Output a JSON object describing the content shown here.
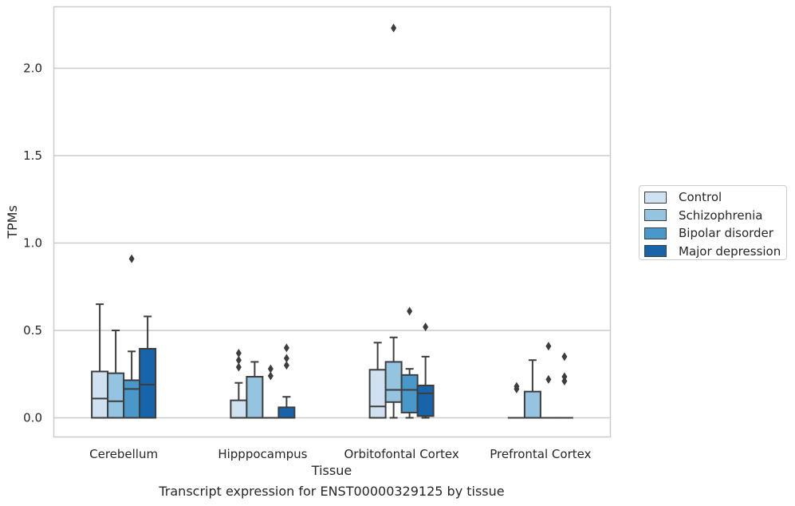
{
  "chart_data": {
    "type": "box",
    "xlabel": "Tissue",
    "ylabel": "TPMs",
    "caption": "Transcript expression for ENST00000329125 by tissue",
    "ylim": [
      -0.11,
      2.35
    ],
    "yticks": [
      0.0,
      0.5,
      1.0,
      1.5,
      2.0
    ],
    "ytick_labels": [
      "0.0",
      "0.5",
      "1.0",
      "1.5",
      "2.0"
    ],
    "grid": "horizontal",
    "legend_position": "right",
    "categories": [
      "Cerebellum",
      "Hipppocampus",
      "Orbitofontal Cortex",
      "Prefrontal Cortex"
    ],
    "series": [
      {
        "name": "Control",
        "color": "#d0e1f2",
        "boxes": [
          {
            "min": 0.0,
            "q1": 0.0,
            "median": 0.11,
            "q3": 0.265,
            "max": 0.65,
            "outliers": []
          },
          {
            "min": 0.0,
            "q1": 0.0,
            "median": 0.0,
            "q3": 0.1,
            "max": 0.2,
            "outliers": [
              0.29,
              0.33,
              0.37
            ]
          },
          {
            "min": 0.0,
            "q1": 0.0,
            "median": 0.065,
            "q3": 0.275,
            "max": 0.43,
            "outliers": []
          },
          {
            "min": 0.0,
            "q1": 0.0,
            "median": 0.0,
            "q3": 0.0,
            "max": 0.0,
            "outliers": [
              0.165,
              0.18
            ]
          }
        ]
      },
      {
        "name": "Schizophrenia",
        "color": "#94c4df",
        "boxes": [
          {
            "min": 0.0,
            "q1": 0.0,
            "median": 0.095,
            "q3": 0.255,
            "max": 0.5,
            "outliers": []
          },
          {
            "min": 0.0,
            "q1": 0.0,
            "median": 0.0,
            "q3": 0.235,
            "max": 0.32,
            "outliers": []
          },
          {
            "min": 0.0,
            "q1": 0.09,
            "median": 0.16,
            "q3": 0.32,
            "max": 0.46,
            "outliers": [
              2.23
            ]
          },
          {
            "min": 0.0,
            "q1": 0.0,
            "median": 0.0,
            "q3": 0.15,
            "max": 0.33,
            "outliers": []
          }
        ]
      },
      {
        "name": "Bipolar disorder",
        "color": "#4a98c9",
        "boxes": [
          {
            "min": 0.0,
            "q1": 0.0,
            "median": 0.165,
            "q3": 0.215,
            "max": 0.38,
            "outliers": [
              0.91
            ]
          },
          {
            "min": 0.0,
            "q1": 0.0,
            "median": 0.0,
            "q3": 0.0,
            "max": 0.0,
            "outliers": [
              0.24,
              0.28
            ]
          },
          {
            "min": 0.0,
            "q1": 0.03,
            "median": 0.16,
            "q3": 0.245,
            "max": 0.28,
            "outliers": [
              0.61
            ]
          },
          {
            "min": 0.0,
            "q1": 0.0,
            "median": 0.0,
            "q3": 0.0,
            "max": 0.0,
            "outliers": [
              0.22,
              0.41
            ]
          }
        ]
      },
      {
        "name": "Major depression",
        "color": "#1764ab",
        "boxes": [
          {
            "min": 0.0,
            "q1": 0.0,
            "median": 0.19,
            "q3": 0.395,
            "max": 0.58,
            "outliers": []
          },
          {
            "min": 0.0,
            "q1": 0.0,
            "median": 0.0,
            "q3": 0.06,
            "max": 0.12,
            "outliers": [
              0.3,
              0.34,
              0.4
            ]
          },
          {
            "min": 0.0,
            "q1": 0.01,
            "median": 0.14,
            "q3": 0.185,
            "max": 0.35,
            "outliers": [
              0.52
            ]
          },
          {
            "min": 0.0,
            "q1": 0.0,
            "median": 0.0,
            "q3": 0.0,
            "max": 0.0,
            "outliers": [
              0.21,
              0.235,
              0.35
            ]
          }
        ]
      }
    ]
  }
}
